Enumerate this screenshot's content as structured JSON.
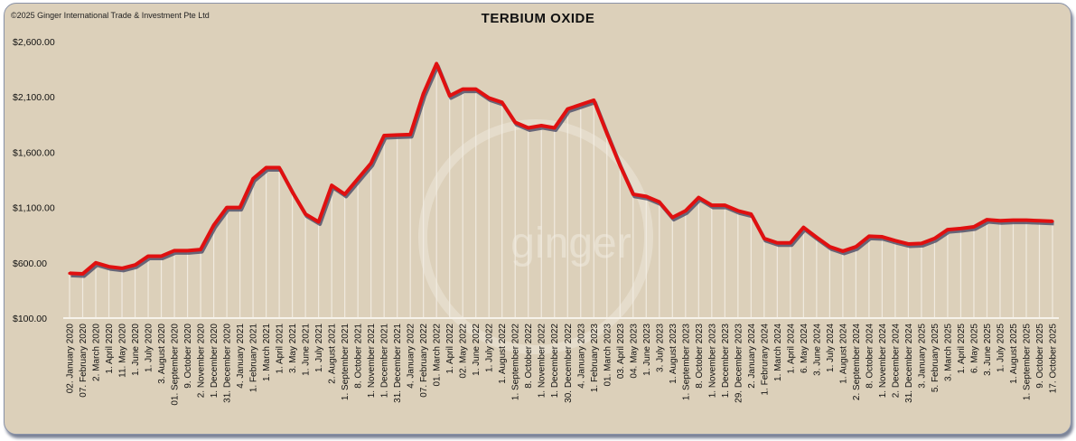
{
  "copyright": "©2025 Ginger International Trade & Investment Pte Ltd",
  "watermark": "ginger",
  "colors": {
    "line": "#e01010",
    "shadow": "#4a4a66",
    "background": "#dcd0ba",
    "droplines": "#f4efe6"
  },
  "chart_data": {
    "type": "line",
    "title": "TERBIUM OXIDE",
    "xlabel": "",
    "ylabel": "",
    "ylim": [
      100,
      2600
    ],
    "yticks": [
      "$100.00",
      "$600.00",
      "$1,100.00",
      "$1,600.00",
      "$2,100.00",
      "$2,600.00"
    ],
    "ytick_values": [
      100,
      600,
      1100,
      1600,
      2100,
      2600
    ],
    "grid": false,
    "categories": [
      "02. January 2020",
      "07. February 2020",
      "2. March 2020",
      "1. April 2020",
      "11. May 2020",
      "1. June 2020",
      "1. July 2020",
      "3. August 2020",
      "01. September 2020",
      "9. October 2020",
      "2. November 2020",
      "1. December 2020",
      "31. December 2020",
      "4. January 2021",
      "1. February 2021",
      "1. March 2021",
      "1. April 2021",
      "3. May 2021",
      "1. June 2021",
      "1. July 2021",
      "2. August 2021",
      "1. September 2021",
      "8. October 2021",
      "1. November 2021",
      "1. December 2021",
      "31. December 2021",
      "4. January 2022",
      "07. February 2022",
      "01. March 2022",
      "1. April 2022",
      "02. May 2022",
      "1. June 2022",
      "1. July 2022",
      "1. August 2022",
      "1. September 2022",
      "8. October 2022",
      "1. November 2022",
      "1. December 2022",
      "30. December 2022",
      "4. January 2023",
      "1. February 2023",
      "01. March 2023",
      "03. April 2023",
      "04. May 2023",
      "1. June 2023",
      "3. July 2023",
      "1. August 2023",
      "1. September 2023",
      "8. October 2023",
      "1. November 2023",
      "1. December 2023",
      "29. December 2023",
      "2. January 2024",
      "1. Februrary 2024",
      "1. March 2024",
      "1. April 2024",
      "6. May 2024",
      "3. June 2024",
      "1. July 2024",
      "1. August 2024",
      "2. September 2024",
      "8. October 2024",
      "1. November 2024",
      "2. December 2024",
      "31. December 2024",
      "3. January 2025",
      "5. February 2025",
      "3. March 2025",
      "1. April 2025",
      "6. May 2025",
      "3. June 2025",
      "1. July 2025",
      "1. August 2025",
      "1. September 2025",
      "9. October 2025",
      "17. October 2025"
    ],
    "values": [
      505,
      500,
      600,
      565,
      550,
      580,
      660,
      660,
      710,
      710,
      720,
      940,
      1100,
      1100,
      1360,
      1460,
      1460,
      1240,
      1040,
      970,
      1300,
      1220,
      1360,
      1500,
      1750,
      1755,
      1760,
      2130,
      2400,
      2110,
      2170,
      2170,
      2090,
      2050,
      1870,
      1820,
      1840,
      1820,
      1990,
      2030,
      2070,
      1770,
      1480,
      1220,
      1200,
      1150,
      1010,
      1070,
      1190,
      1120,
      1120,
      1070,
      1040,
      820,
      780,
      780,
      920,
      830,
      745,
      705,
      745,
      840,
      835,
      800,
      770,
      775,
      820,
      900,
      910,
      925,
      990,
      980,
      985,
      985,
      980,
      975
    ]
  }
}
